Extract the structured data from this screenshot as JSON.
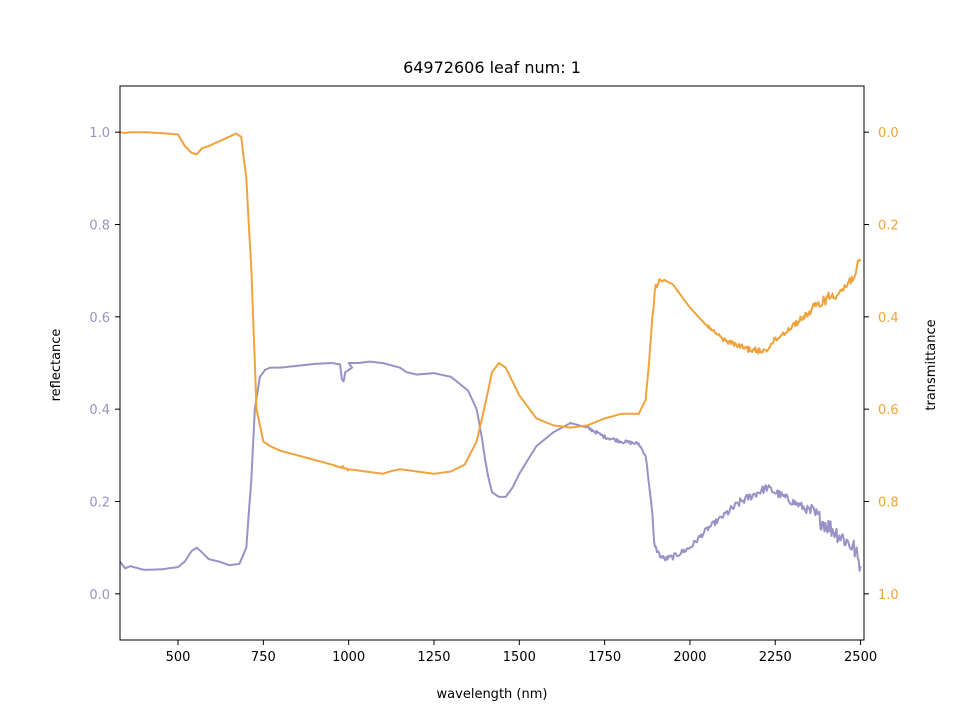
{
  "chart_data": {
    "type": "line",
    "title": "64972606 leaf num: 1",
    "xlabel": "wavelength (nm)",
    "xlim": [
      330,
      2510
    ],
    "xticks": [
      500,
      750,
      1000,
      1250,
      1500,
      1750,
      2000,
      2250,
      2500
    ],
    "left_axis": {
      "label": "reflectance",
      "lim": [
        -0.1,
        1.1
      ],
      "ticks": [
        0.0,
        0.2,
        0.4,
        0.6,
        0.8,
        1.0
      ],
      "tick_labels": [
        "0.0",
        "0.2",
        "0.4",
        "0.6",
        "0.8",
        "1.0"
      ],
      "color": "#9892c6"
    },
    "right_axis": {
      "label": "transmittance",
      "lim": [
        1.1,
        -0.1
      ],
      "inverted": true,
      "ticks": [
        0.0,
        0.2,
        0.4,
        0.6,
        0.8,
        1.0
      ],
      "tick_labels": [
        "0.0",
        "0.2",
        "0.4",
        "0.6",
        "0.8",
        "1.0"
      ],
      "color": "#f0a33c"
    },
    "grid": false,
    "series": [
      {
        "axis": "left",
        "color": "#9892c6",
        "noise": [
          [
            1700,
            1900,
            0.004
          ],
          [
            1900,
            2100,
            0.006
          ],
          [
            2100,
            2350,
            0.009
          ],
          [
            2350,
            2510,
            0.02
          ]
        ],
        "x": [
          330,
          345,
          360,
          400,
          450,
          500,
          520,
          540,
          555,
          570,
          590,
          620,
          650,
          680,
          700,
          715,
          725,
          740,
          755,
          770,
          800,
          850,
          900,
          950,
          975,
          980,
          985,
          990,
          1010,
          1000,
          1030,
          1060,
          1100,
          1150,
          1170,
          1200,
          1250,
          1300,
          1350,
          1375,
          1390,
          1400,
          1410,
          1420,
          1440,
          1460,
          1480,
          1500,
          1550,
          1600,
          1650,
          1700,
          1750,
          1800,
          1850,
          1870,
          1880,
          1890,
          1895,
          1900,
          1910,
          1925,
          1950,
          2000,
          2050,
          2100,
          2150,
          2200,
          2225,
          2250,
          2300,
          2350,
          2400,
          2450,
          2480,
          2500
        ],
        "y": [
          0.07,
          0.055,
          0.06,
          0.052,
          0.053,
          0.058,
          0.07,
          0.093,
          0.1,
          0.09,
          0.075,
          0.07,
          0.062,
          0.065,
          0.1,
          0.25,
          0.4,
          0.47,
          0.485,
          0.49,
          0.49,
          0.494,
          0.498,
          0.5,
          0.497,
          0.465,
          0.46,
          0.48,
          0.49,
          0.5,
          0.5,
          0.503,
          0.5,
          0.49,
          0.48,
          0.475,
          0.478,
          0.47,
          0.44,
          0.4,
          0.34,
          0.29,
          0.25,
          0.22,
          0.21,
          0.21,
          0.23,
          0.26,
          0.32,
          0.35,
          0.37,
          0.36,
          0.34,
          0.33,
          0.325,
          0.3,
          0.24,
          0.17,
          0.11,
          0.1,
          0.085,
          0.075,
          0.08,
          0.1,
          0.14,
          0.17,
          0.2,
          0.22,
          0.23,
          0.22,
          0.2,
          0.18,
          0.15,
          0.12,
          0.1,
          0.06
        ]
      },
      {
        "axis": "right",
        "color": "#f0a33c",
        "noise": [
          [
            960,
            1000,
            0.004
          ],
          [
            1890,
            1920,
            0.015
          ],
          [
            2050,
            2150,
            0.005
          ],
          [
            2150,
            2350,
            0.007
          ],
          [
            2350,
            2510,
            0.012
          ]
        ],
        "x": [
          330,
          345,
          360,
          400,
          450,
          500,
          520,
          540,
          555,
          570,
          590,
          620,
          650,
          670,
          685,
          700,
          715,
          730,
          750,
          770,
          800,
          850,
          900,
          950,
          1000,
          1050,
          1100,
          1120,
          1150,
          1200,
          1250,
          1300,
          1340,
          1375,
          1400,
          1420,
          1440,
          1460,
          1480,
          1500,
          1550,
          1600,
          1650,
          1700,
          1750,
          1800,
          1850,
          1870,
          1880,
          1890,
          1900,
          1910,
          1925,
          1950,
          2000,
          2050,
          2100,
          2150,
          2200,
          2225,
          2250,
          2300,
          2350,
          2400,
          2450,
          2480,
          2500
        ],
        "y": [
          0.0,
          0.002,
          0.0,
          0.0,
          0.002,
          0.005,
          0.03,
          0.045,
          0.048,
          0.035,
          0.03,
          0.02,
          0.01,
          0.003,
          0.01,
          0.1,
          0.3,
          0.6,
          0.67,
          0.68,
          0.69,
          0.7,
          0.71,
          0.72,
          0.73,
          0.735,
          0.74,
          0.735,
          0.73,
          0.735,
          0.74,
          0.735,
          0.72,
          0.67,
          0.59,
          0.52,
          0.5,
          0.51,
          0.54,
          0.57,
          0.62,
          0.635,
          0.64,
          0.635,
          0.62,
          0.61,
          0.61,
          0.58,
          0.5,
          0.4,
          0.34,
          0.33,
          0.32,
          0.33,
          0.38,
          0.42,
          0.45,
          0.465,
          0.475,
          0.47,
          0.45,
          0.42,
          0.39,
          0.36,
          0.34,
          0.31,
          0.28
        ]
      }
    ]
  }
}
